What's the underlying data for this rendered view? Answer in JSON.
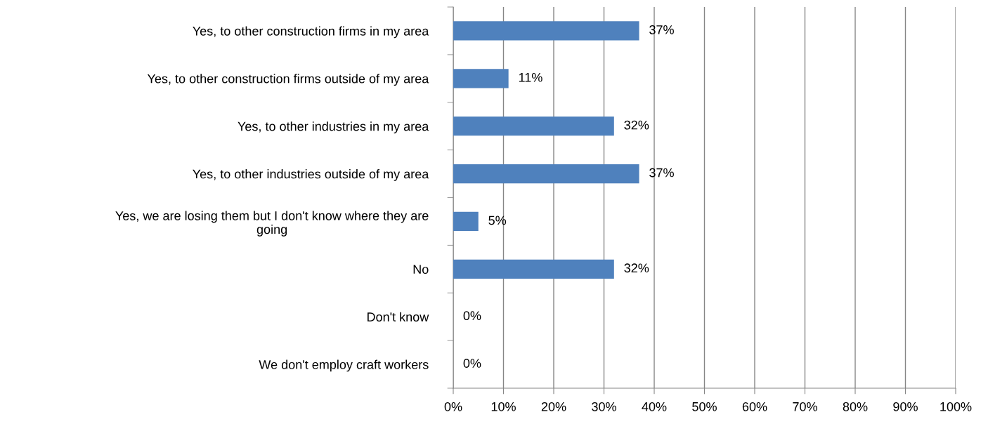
{
  "chart_data": {
    "type": "bar",
    "orientation": "horizontal",
    "categories": [
      "Yes, to other construction firms in my area",
      "Yes, to other construction firms outside of my area",
      "Yes, to other industries in my area",
      "Yes, to other industries outside of my area",
      "Yes, we are losing them but I don't know where they are going",
      "No",
      "Don't know",
      "We don't employ craft workers"
    ],
    "values": [
      37,
      11,
      32,
      37,
      5,
      32,
      0,
      0
    ],
    "value_labels": [
      "37%",
      "11%",
      "32%",
      "37%",
      "5%",
      "32%",
      "0%",
      "0%"
    ],
    "color": "#4f81bd",
    "xlim": [
      0,
      100
    ],
    "xticks": [
      {
        "value": 0,
        "label": "0%"
      },
      {
        "value": 10,
        "label": "10%"
      },
      {
        "value": 20,
        "label": "20%"
      },
      {
        "value": 30,
        "label": "30%"
      },
      {
        "value": 40,
        "label": "40%"
      },
      {
        "value": 50,
        "label": "50%"
      },
      {
        "value": 60,
        "label": "60%"
      },
      {
        "value": 70,
        "label": "70%"
      },
      {
        "value": 80,
        "label": "80%"
      },
      {
        "value": 90,
        "label": "90%"
      },
      {
        "value": 100,
        "label": "100%"
      }
    ],
    "grid": "x"
  }
}
